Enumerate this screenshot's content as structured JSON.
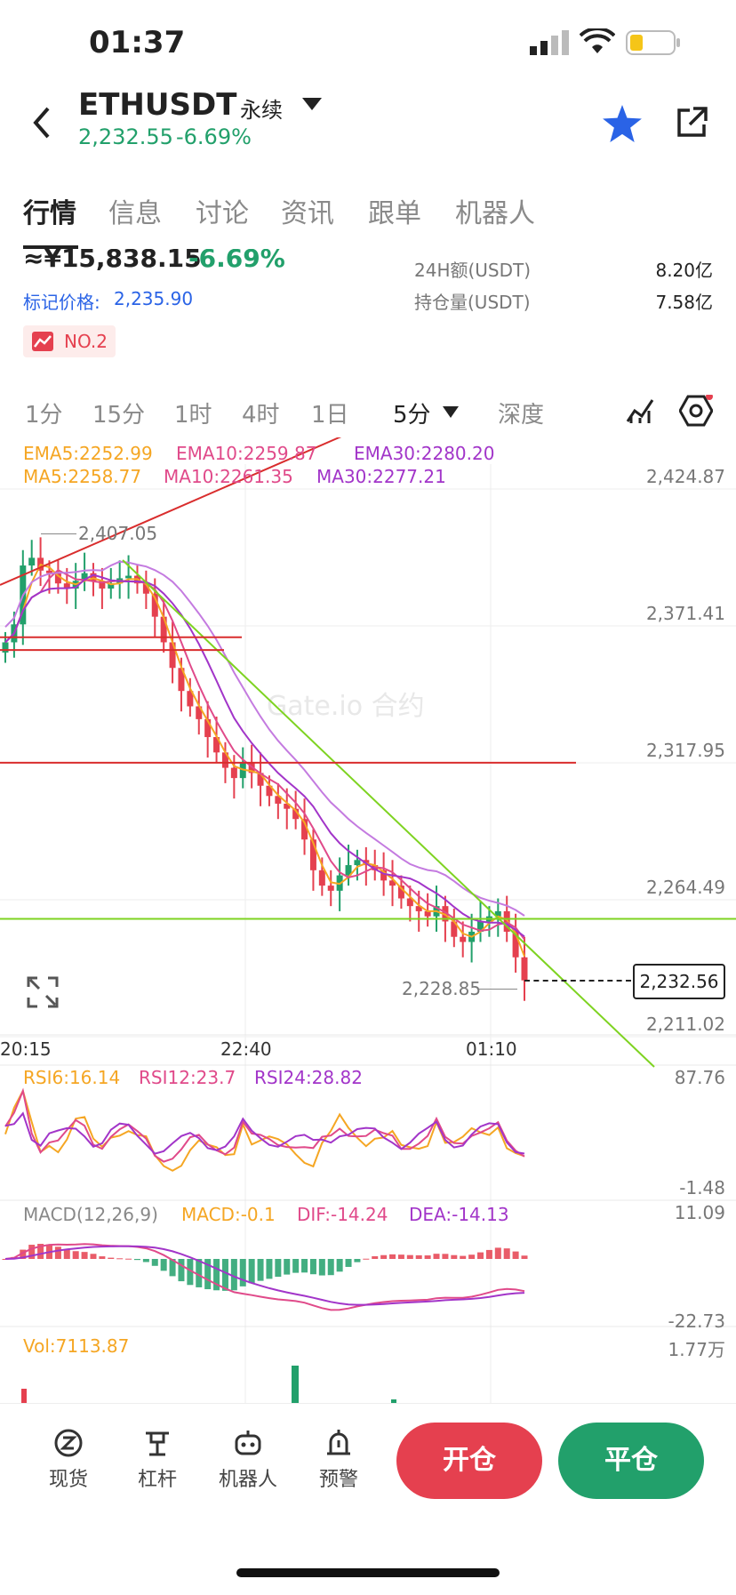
{
  "status_bar": {
    "time": "01:37"
  },
  "header": {
    "symbol": "ETHUSDT",
    "contract_type": "永续",
    "price": "2,232.55",
    "change": "-6.69%"
  },
  "tabs": [
    "行情",
    "信息",
    "讨论",
    "资讯",
    "跟单",
    "机器人"
  ],
  "summary": {
    "cny_price": "≈¥15,838.15",
    "cny_change": "-6.69%",
    "mark_price_label": "标记价格:",
    "mark_price": "2,235.90",
    "rank_badge": "NO.2",
    "stats": [
      {
        "label": "24H额(USDT)",
        "value": "8.20亿"
      },
      {
        "label": "持仓量(USDT)",
        "value": "7.58亿"
      }
    ]
  },
  "timeframes": {
    "items": [
      "1分",
      "15分",
      "1时",
      "4时",
      "1日"
    ],
    "selected": "5分",
    "depth": "深度"
  },
  "indicators": {
    "ema5": "EMA5:2252.99",
    "ema10": "EMA10:2259.87",
    "ema30": "EMA30:2280.20",
    "ma5": "MA5:2258.77",
    "ma10": "MA10:2261.35",
    "ma30": "MA30:2277.21"
  },
  "chart_data": {
    "type": "candlestick",
    "x_ticks": [
      "20:15",
      "22:40",
      "01:10"
    ],
    "y_ticks": [
      "2,424.87",
      "2,371.41",
      "2,317.95",
      "2,264.49",
      "2,211.02"
    ],
    "high_label": "2,407.05",
    "low_label": "2,228.85",
    "last_price": "2,232.56",
    "watermark": "Gate.io 合约",
    "close_series": [
      2365,
      2372,
      2395,
      2398,
      2393,
      2392,
      2388,
      2386,
      2389,
      2392,
      2389,
      2386,
      2388,
      2390,
      2391,
      2388,
      2384,
      2375,
      2365,
      2355,
      2346,
      2340,
      2335,
      2328,
      2322,
      2316,
      2312,
      2318,
      2314,
      2309,
      2305,
      2302,
      2300,
      2296,
      2288,
      2276,
      2270,
      2268,
      2274,
      2278,
      2280,
      2278,
      2276,
      2272,
      2270,
      2265,
      2262,
      2260,
      2258,
      2262,
      2256,
      2250,
      2248,
      2252,
      2256,
      2258,
      2260,
      2252,
      2242,
      2233
    ],
    "horizontal_lines": [
      {
        "color": "#d92d2d",
        "price": 2367
      },
      {
        "color": "#d92d2d",
        "price": 2362
      },
      {
        "color": "#d92d2d",
        "price": 2318
      },
      {
        "color": "#7ed321",
        "price": 2257
      }
    ]
  },
  "rsi": {
    "rsi6": "RSI6:16.14",
    "rsi12": "RSI12:23.7",
    "rsi24": "RSI24:28.82",
    "top": "87.76",
    "bottom": "-1.48"
  },
  "macd": {
    "name": "MACD(12,26,9)",
    "macd": "MACD:-0.1",
    "dif": "DIF:-14.24",
    "dea": "DEA:-14.13",
    "top": "11.09",
    "bottom": "-22.73"
  },
  "volume": {
    "label": "Vol:7113.87",
    "max": "1.77万"
  },
  "bottom_nav": {
    "items": [
      {
        "label": "现货",
        "icon": "spot-icon"
      },
      {
        "label": "杠杆",
        "icon": "leverage-icon"
      },
      {
        "label": "机器人",
        "icon": "robot-icon"
      },
      {
        "label": "预警",
        "icon": "alert-icon"
      }
    ],
    "open_button": "开仓",
    "close_button": "平仓"
  },
  "colors": {
    "up": "#22a06b",
    "down": "#e5404f",
    "accent": "#2a63e6",
    "ema5": "#f5a623",
    "ema10": "#e04a8a",
    "ema30": "#a235c9"
  }
}
